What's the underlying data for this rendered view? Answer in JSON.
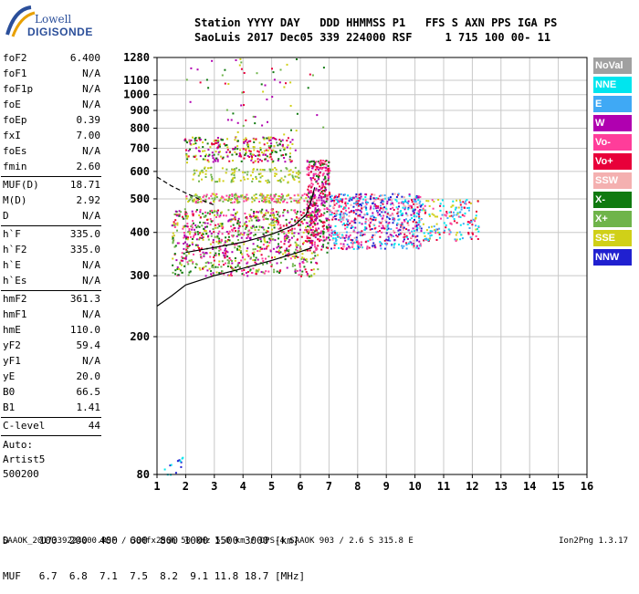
{
  "logo": {
    "line1": "Lowell",
    "line2": "DIGISONDE"
  },
  "header": {
    "labels": "Station YYYY DAY   DDD HHMMSS P1   FFS S AXN PPS IGA PS",
    "values": "SaoLuis 2017 Dec05 339 224000 RSF     1 715 100 00- 11"
  },
  "params": [
    {
      "k": "foF2",
      "v": "6.400"
    },
    {
      "k": "foF1",
      "v": "N/A"
    },
    {
      "k": "foF1p",
      "v": "N/A"
    },
    {
      "k": "foE",
      "v": "N/A"
    },
    {
      "k": "foEp",
      "v": "0.39"
    },
    {
      "k": "fxI",
      "v": "7.00"
    },
    {
      "k": "foEs",
      "v": "N/A"
    },
    {
      "k": "fmin",
      "v": "2.60"
    },
    {
      "sep": true
    },
    {
      "k": "MUF(D)",
      "v": "18.71"
    },
    {
      "k": "M(D)",
      "v": "2.92"
    },
    {
      "k": "D",
      "v": "N/A"
    },
    {
      "sep": true
    },
    {
      "k": "h`F",
      "v": "335.0"
    },
    {
      "k": "h`F2",
      "v": "335.0"
    },
    {
      "k": "h`E",
      "v": "N/A"
    },
    {
      "k": "h`Es",
      "v": "N/A"
    },
    {
      "sep": true
    },
    {
      "k": "hmF2",
      "v": "361.3"
    },
    {
      "k": "hmF1",
      "v": "N/A"
    },
    {
      "k": "hmE",
      "v": "110.0"
    },
    {
      "k": "yF2",
      "v": "59.4"
    },
    {
      "k": "yF1",
      "v": "N/A"
    },
    {
      "k": "yE",
      "v": "20.0"
    },
    {
      "k": "B0",
      "v": "66.5"
    },
    {
      "k": "B1",
      "v": "1.41"
    },
    {
      "sep": true
    },
    {
      "k": "C-level",
      "v": "44"
    },
    {
      "sep": true
    }
  ],
  "auto": {
    "line1": "Auto:",
    "line2": "Artist5",
    "line3": "500200"
  },
  "legend": [
    {
      "label": "NoVal",
      "color": "#a0a0a0"
    },
    {
      "label": "NNE",
      "color": "#00e5ee"
    },
    {
      "label": "E",
      "color": "#3fa9f5"
    },
    {
      "label": "W",
      "color": "#b000b0"
    },
    {
      "label": "Vo-",
      "color": "#ff3d9a"
    },
    {
      "label": "Vo+",
      "color": "#e8003a"
    },
    {
      "label": "SSW",
      "color": "#f4b0b0"
    },
    {
      "label": "X-",
      "color": "#107a10"
    },
    {
      "label": "X+",
      "color": "#6fb44a"
    },
    {
      "label": "SSE",
      "color": "#d0d018"
    },
    {
      "label": "NNW",
      "color": "#2020d0"
    }
  ],
  "table": {
    "d_row": "D     100  200  400  600  800 1000 1500 3000 [km]",
    "muf_row": "MUF   6.7  6.8  7.1  7.5  8.2  9.1 11.8 18.7 [MHz]"
  },
  "footer": "SAAOK_2017339224000.RSF / 300fx256h 50 kHz 5.0 km / DPS-4 SAAOK 903 / 2.6 S 315.8 E",
  "version": "Ion2Png 1.3.17",
  "chart_data": {
    "type": "scatter",
    "title": "",
    "xlabel": "",
    "ylabel": "",
    "xlim": [
      1,
      16
    ],
    "ylim": [
      80,
      1280
    ],
    "y_scale": "log",
    "x_ticks": [
      1,
      2,
      3,
      4,
      5,
      6,
      7,
      8,
      9,
      10,
      11,
      12,
      13,
      14,
      15,
      16
    ],
    "y_ticks": [
      80,
      200,
      300,
      400,
      500,
      600,
      700,
      800,
      900,
      1000,
      1100,
      1280
    ],
    "grid": true,
    "lines": [
      {
        "name": "profile",
        "style": "solid",
        "points": [
          [
            1,
            245
          ],
          [
            1.5,
            262
          ],
          [
            2,
            282
          ],
          [
            3,
            300
          ],
          [
            4,
            315
          ],
          [
            5,
            332
          ],
          [
            6,
            352
          ],
          [
            6.4,
            361.3
          ]
        ]
      },
      {
        "name": "trace",
        "style": "solid",
        "points": [
          [
            2,
            350
          ],
          [
            3,
            362
          ],
          [
            4,
            375
          ],
          [
            5,
            395
          ],
          [
            5.8,
            420
          ],
          [
            6.2,
            450
          ],
          [
            6.4,
            500
          ],
          [
            6.5,
            540
          ]
        ]
      },
      {
        "name": "extrapolation",
        "style": "dashed",
        "points": [
          [
            1,
            578
          ],
          [
            1.5,
            545
          ],
          [
            2,
            520
          ],
          [
            2.5,
            498
          ],
          [
            3,
            480
          ]
        ]
      }
    ],
    "clusters": [
      {
        "x": [
          1.5,
          6.6
        ],
        "y": [
          300,
          470
        ],
        "n": 950,
        "colors": [
          "#ff3d9a",
          "#107a10",
          "#b000b0",
          "#e8003a",
          "#d0d018",
          "#6fb44a"
        ]
      },
      {
        "x": [
          1.9,
          5.7
        ],
        "y": [
          640,
          760
        ],
        "n": 260,
        "colors": [
          "#107a10",
          "#b000b0",
          "#e8003a",
          "#d0d018"
        ]
      },
      {
        "x": [
          1.9,
          6.2
        ],
        "y": [
          490,
          520
        ],
        "n": 200,
        "colors": [
          "#d0d018",
          "#6fb44a",
          "#ff3d9a"
        ]
      },
      {
        "x": [
          2.2,
          6.0
        ],
        "y": [
          560,
          620
        ],
        "n": 120,
        "colors": [
          "#d0d018",
          "#6fb44a"
        ]
      },
      {
        "x": [
          6.2,
          7.0
        ],
        "y": [
          350,
          650
        ],
        "n": 380,
        "colors": [
          "#e8003a",
          "#ff3d9a",
          "#b000b0",
          "#107a10"
        ]
      },
      {
        "x": [
          7.0,
          10.2
        ],
        "y": [
          360,
          520
        ],
        "n": 700,
        "colors": [
          "#b000b0",
          "#ff3d9a",
          "#2020d0",
          "#e8003a",
          "#3fa9f5",
          "#f4b0b0",
          "#00e5ee"
        ]
      },
      {
        "x": [
          10.2,
          12.2
        ],
        "y": [
          380,
          500
        ],
        "n": 170,
        "colors": [
          "#ff3d9a",
          "#e8003a",
          "#3fa9f5",
          "#d0d018",
          "#00e5ee"
        ]
      },
      {
        "x": [
          2.0,
          6.8
        ],
        "y": [
          660,
          1280
        ],
        "n": 80,
        "colors": [
          "#107a10",
          "#b000b0",
          "#d0d018",
          "#e8003a",
          "#6fb44a"
        ]
      },
      {
        "x": [
          1.1,
          1.9
        ],
        "y": [
          80,
          90
        ],
        "n": 14,
        "colors": [
          "#00e5ee",
          "#3fa9f5",
          "#2020d0"
        ]
      }
    ]
  }
}
